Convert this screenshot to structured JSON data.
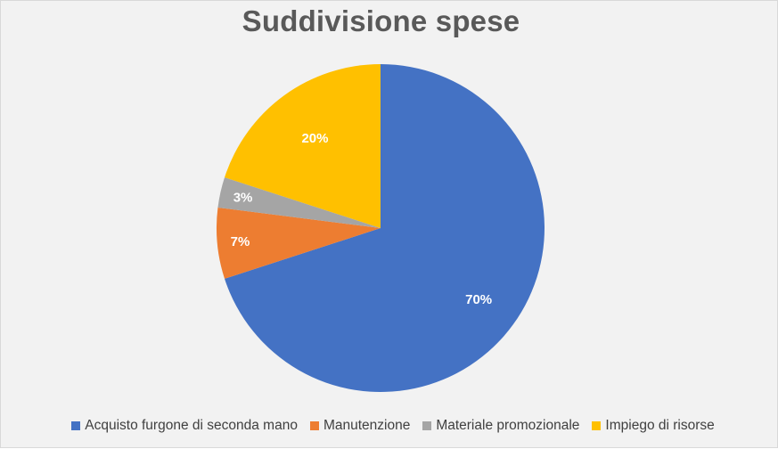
{
  "chart_data": {
    "type": "pie",
    "title": "Suddivisione spese",
    "categories": [
      "Acquisto furgone di seconda mano",
      "Manutenzione",
      "Materiale promozionale",
      "Impiego di risorse"
    ],
    "values": [
      70,
      7,
      3,
      20
    ],
    "data_labels": [
      "70%",
      "7%",
      "3%",
      "20%"
    ],
    "colors": [
      "#4472c4",
      "#ed7d31",
      "#a5a5a5",
      "#ffc000"
    ],
    "start_angle_deg": 0,
    "direction": "clockwise",
    "legend": "bottom"
  }
}
